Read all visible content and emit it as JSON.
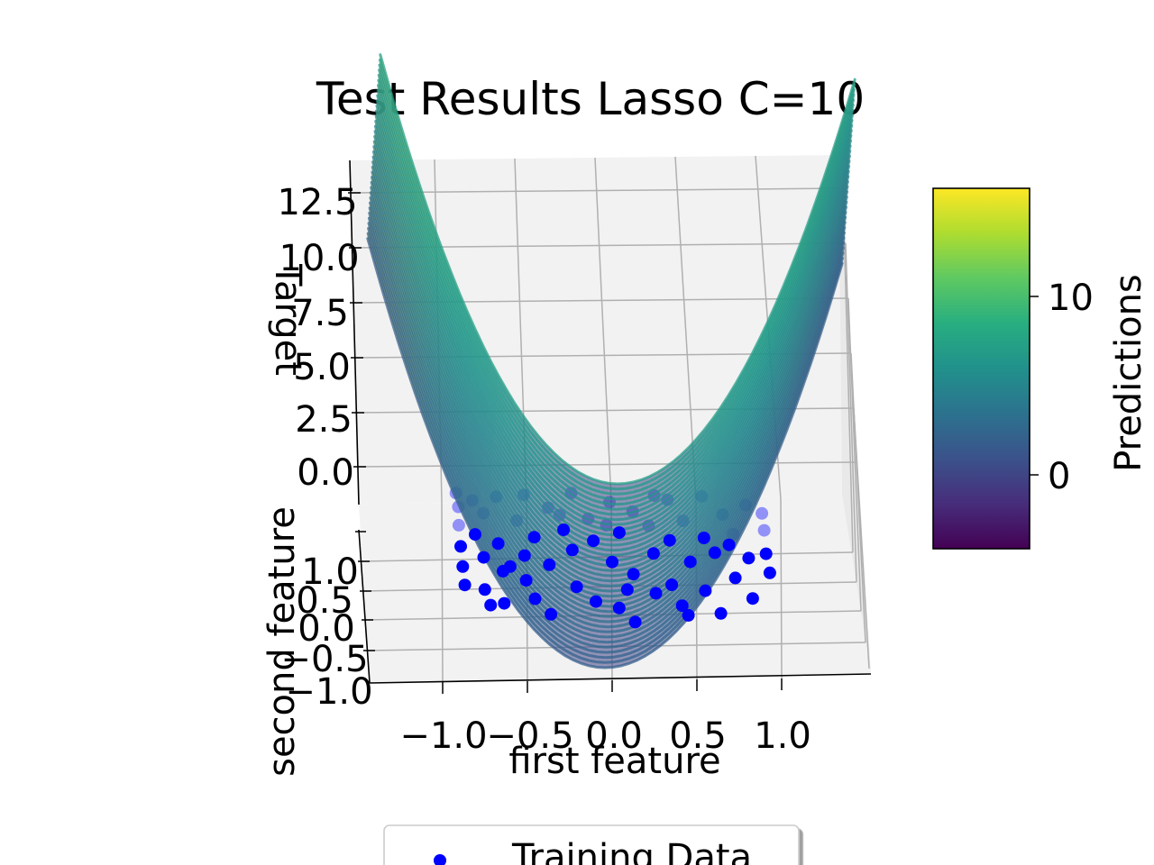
{
  "chart_data": {
    "type": "scatter",
    "title": "Test Results Lasso C=10",
    "xlabel": "first feature",
    "ylabel": "second feature",
    "zlabel": "Target",
    "x_ticks": [
      "−1.0",
      "−0.5",
      "0.0",
      "0.5",
      "1.0"
    ],
    "y_ticks": [
      "1.0",
      "0.5",
      "0.0",
      "−0.5",
      "−1.0"
    ],
    "z_ticks": [
      "12.5",
      "10.0",
      "7.5",
      "5.0",
      "2.5",
      "0.0"
    ],
    "xlim": [
      -1.2,
      1.2
    ],
    "ylim": [
      -1.0,
      1.0
    ],
    "zlim": [
      -1.0,
      13.5
    ],
    "grid": true,
    "legend": {
      "position": "bottom",
      "entries": [
        "Training Data"
      ]
    },
    "colorbar": {
      "label": "Predictions",
      "ticks": [
        "10",
        "0"
      ],
      "range": [
        -4,
        16
      ],
      "colormap": "viridis"
    },
    "series": [
      {
        "name": "Training Data",
        "color": "#0000ff",
        "marker": "circle",
        "points": [
          [
            -0.95,
            0.9
          ],
          [
            -0.93,
            0.75
          ],
          [
            -0.92,
            0.55
          ],
          [
            -0.9,
            0.32
          ],
          [
            -0.88,
            0.1
          ],
          [
            -0.86,
            -0.1
          ],
          [
            -0.82,
            0.45
          ],
          [
            -0.78,
            0.68
          ],
          [
            -0.76,
            0.2
          ],
          [
            -0.74,
            -0.15
          ],
          [
            -0.71,
            0.86
          ],
          [
            -0.68,
            0.35
          ],
          [
            -0.64,
            0.05
          ],
          [
            -0.62,
            -0.3
          ],
          [
            -0.58,
            0.6
          ],
          [
            -0.55,
            0.88
          ],
          [
            -0.52,
            0.22
          ],
          [
            -0.5,
            -0.05
          ],
          [
            -0.47,
            0.42
          ],
          [
            -0.44,
            -0.25
          ],
          [
            -0.4,
            0.74
          ],
          [
            -0.37,
            0.12
          ],
          [
            -0.34,
            -0.42
          ],
          [
            -0.3,
            0.5
          ],
          [
            -0.27,
            0.9
          ],
          [
            -0.24,
            0.28
          ],
          [
            -0.2,
            -0.12
          ],
          [
            -0.16,
            0.62
          ],
          [
            -0.12,
            0.38
          ],
          [
            -0.08,
            -0.28
          ],
          [
            -0.04,
            0.8
          ],
          [
            0.0,
            0.15
          ],
          [
            0.03,
            0.47
          ],
          [
            0.06,
            -0.35
          ],
          [
            0.1,
            0.7
          ],
          [
            0.13,
            0.02
          ],
          [
            0.16,
            -0.5
          ],
          [
            0.2,
            0.55
          ],
          [
            0.24,
            0.25
          ],
          [
            0.27,
            -0.18
          ],
          [
            0.3,
            0.84
          ],
          [
            0.33,
            0.4
          ],
          [
            0.36,
            -0.08
          ],
          [
            0.4,
            0.62
          ],
          [
            0.43,
            -0.3
          ],
          [
            0.46,
            0.18
          ],
          [
            0.5,
            0.9
          ],
          [
            0.53,
            0.45
          ],
          [
            0.56,
            -0.12
          ],
          [
            0.6,
            0.3
          ],
          [
            0.63,
            0.72
          ],
          [
            0.66,
            -0.35
          ],
          [
            0.7,
            0.52
          ],
          [
            0.73,
            0.05
          ],
          [
            0.76,
            0.85
          ],
          [
            0.8,
            0.28
          ],
          [
            0.84,
            -0.15
          ],
          [
            0.88,
            0.6
          ],
          [
            0.9,
            0.35
          ],
          [
            0.93,
            0.15
          ],
          [
            -0.85,
            0.82
          ],
          [
            -0.6,
            0.1
          ],
          [
            -0.33,
            0.66
          ],
          [
            -0.05,
            0.55
          ],
          [
            0.22,
            0.88
          ],
          [
            0.47,
            -0.4
          ],
          [
            0.68,
            0.4
          ],
          [
            0.86,
            0.78
          ],
          [
            -0.7,
            -0.32
          ],
          [
            0.1,
            -0.15
          ]
        ]
      }
    ]
  }
}
